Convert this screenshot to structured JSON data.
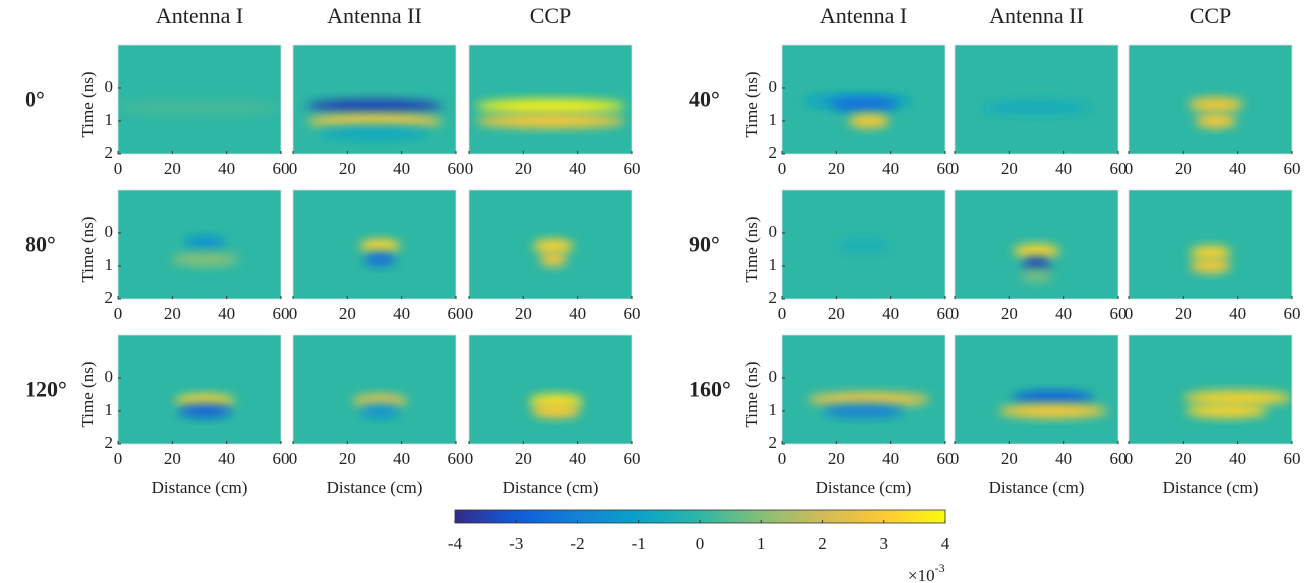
{
  "chart_data": [
    {
      "type": "heatmap",
      "title": "Antenna I",
      "angle_label": "0°",
      "ylabel": "Time (ns)",
      "xlim": [
        0,
        60
      ],
      "ylim": [
        2,
        -1.3
      ],
      "xticks": [
        0,
        20,
        40,
        60
      ],
      "yticks": [
        0,
        1,
        2
      ],
      "blobs": [
        {
          "x": 30,
          "y": 0.6,
          "w": 60,
          "value": 0.3
        }
      ]
    },
    {
      "type": "heatmap",
      "title": "Antenna II",
      "xlim": [
        0,
        60
      ],
      "ylim": [
        2,
        -1.3
      ],
      "xticks": [
        0,
        20,
        40,
        60
      ],
      "blobs": [
        {
          "x": 30,
          "y": 0.55,
          "w": 50,
          "value": -3.5
        },
        {
          "x": 30,
          "y": 1.0,
          "w": 50,
          "value": 2.8
        },
        {
          "x": 30,
          "y": 1.35,
          "w": 40,
          "value": -0.8
        }
      ]
    },
    {
      "type": "heatmap",
      "title": "CCP",
      "xlim": [
        0,
        60
      ],
      "ylim": [
        2,
        -1.3
      ],
      "xticks": [
        0,
        20,
        40,
        60
      ],
      "blobs": [
        {
          "x": 30,
          "y": 0.55,
          "w": 55,
          "value": 3.8
        },
        {
          "x": 30,
          "y": 1.0,
          "w": 55,
          "value": 3.0
        }
      ]
    },
    {
      "type": "heatmap",
      "title": "Antenna I",
      "angle_label": "40°",
      "ylabel": "Time (ns)",
      "xlim": [
        0,
        60
      ],
      "ylim": [
        2,
        -1.3
      ],
      "xticks": [
        0,
        20,
        40,
        60
      ],
      "yticks": [
        0,
        1,
        2
      ],
      "blobs": [
        {
          "x": 28,
          "y": 0.4,
          "w": 40,
          "value": -1.2
        },
        {
          "x": 30,
          "y": 0.5,
          "w": 25,
          "value": -2.5
        },
        {
          "x": 32,
          "y": 1.0,
          "w": 15,
          "value": 3
        }
      ]
    },
    {
      "type": "heatmap",
      "title": "Antenna II",
      "xlim": [
        0,
        60
      ],
      "ylim": [
        2,
        -1.3
      ],
      "xticks": [
        0,
        20,
        40,
        60
      ],
      "blobs": [
        {
          "x": 30,
          "y": 0.6,
          "w": 40,
          "value": -0.7
        }
      ]
    },
    {
      "type": "heatmap",
      "title": "CCP",
      "xlim": [
        0,
        60
      ],
      "ylim": [
        2,
        -1.3
      ],
      "xticks": [
        0,
        20,
        40,
        60
      ],
      "blobs": [
        {
          "x": 32,
          "y": 0.5,
          "w": 20,
          "value": 3
        },
        {
          "x": 32,
          "y": 1.0,
          "w": 15,
          "value": 3
        }
      ]
    },
    {
      "type": "heatmap",
      "angle_label": "80°",
      "ylabel": "Time (ns)",
      "xlim": [
        0,
        60
      ],
      "ylim": [
        2,
        -1.3
      ],
      "xticks": [
        0,
        20,
        40,
        60
      ],
      "yticks": [
        0,
        1,
        2
      ],
      "blobs": [
        {
          "x": 32,
          "y": 0.3,
          "w": 15,
          "value": -1.5
        },
        {
          "x": 32,
          "y": 0.8,
          "w": 25,
          "value": 1
        }
      ]
    },
    {
      "type": "heatmap",
      "xlim": [
        0,
        60
      ],
      "ylim": [
        2,
        -1.3
      ],
      "xticks": [
        0,
        20,
        40,
        60
      ],
      "blobs": [
        {
          "x": 32,
          "y": 0.4,
          "w": 15,
          "value": 3.2
        },
        {
          "x": 32,
          "y": 0.8,
          "w": 12,
          "value": -2.5
        }
      ]
    },
    {
      "type": "heatmap",
      "xlim": [
        0,
        60
      ],
      "ylim": [
        2,
        -1.3
      ],
      "xticks": [
        0,
        20,
        40,
        60
      ],
      "blobs": [
        {
          "x": 31,
          "y": 0.4,
          "w": 15,
          "value": 3.2
        },
        {
          "x": 31,
          "y": 0.8,
          "w": 10,
          "value": 2.8
        }
      ]
    },
    {
      "type": "heatmap",
      "angle_label": "90°",
      "ylabel": "Time (ns)",
      "xlim": [
        0,
        60
      ],
      "ylim": [
        2,
        -1.3
      ],
      "xticks": [
        0,
        20,
        40,
        60
      ],
      "yticks": [
        0,
        1,
        2
      ],
      "blobs": [
        {
          "x": 30,
          "y": 0.4,
          "w": 20,
          "value": -0.5
        }
      ]
    },
    {
      "type": "heatmap",
      "xlim": [
        0,
        60
      ],
      "ylim": [
        2,
        -1.3
      ],
      "xticks": [
        0,
        20,
        40,
        60
      ],
      "blobs": [
        {
          "x": 30,
          "y": 0.55,
          "w": 17,
          "value": 3.2
        },
        {
          "x": 30,
          "y": 0.95,
          "w": 10,
          "value": -3.5
        },
        {
          "x": 30,
          "y": 1.3,
          "w": 12,
          "value": 0.8
        }
      ]
    },
    {
      "type": "heatmap",
      "xlim": [
        0,
        60
      ],
      "ylim": [
        2,
        -1.3
      ],
      "xticks": [
        0,
        20,
        40,
        60
      ],
      "blobs": [
        {
          "x": 30,
          "y": 0.6,
          "w": 15,
          "value": 3.2
        },
        {
          "x": 30,
          "y": 1.0,
          "w": 15,
          "value": 3
        }
      ]
    },
    {
      "type": "heatmap",
      "angle_label": "120°",
      "ylabel": "Time (ns)",
      "xlabel": "Distance (cm)",
      "xlim": [
        0,
        60
      ],
      "ylim": [
        2,
        -1.3
      ],
      "xticks": [
        0,
        20,
        40,
        60
      ],
      "yticks": [
        0,
        1,
        2
      ],
      "blobs": [
        {
          "x": 32,
          "y": 0.7,
          "w": 22,
          "value": 3.2
        },
        {
          "x": 32,
          "y": 1.0,
          "w": 20,
          "value": -2.8
        }
      ]
    },
    {
      "type": "heatmap",
      "xlabel": "Distance (cm)",
      "xlim": [
        0,
        60
      ],
      "ylim": [
        2,
        -1.3
      ],
      "xticks": [
        0,
        20,
        40,
        60
      ],
      "blobs": [
        {
          "x": 32,
          "y": 0.7,
          "w": 20,
          "value": 2.5
        },
        {
          "x": 32,
          "y": 1.0,
          "w": 15,
          "value": -1.5
        }
      ]
    },
    {
      "type": "heatmap",
      "xlabel": "Distance (cm)",
      "xlim": [
        0,
        60
      ],
      "ylim": [
        2,
        -1.3
      ],
      "xticks": [
        0,
        20,
        40,
        60
      ],
      "blobs": [
        {
          "x": 32,
          "y": 0.7,
          "w": 20,
          "value": 3.5
        },
        {
          "x": 32,
          "y": 1.0,
          "w": 18,
          "value": 3
        }
      ]
    },
    {
      "type": "heatmap",
      "angle_label": "160°",
      "ylabel": "Time (ns)",
      "xlabel": "Distance (cm)",
      "xlim": [
        0,
        60
      ],
      "ylim": [
        2,
        -1.3
      ],
      "xticks": [
        0,
        20,
        40,
        60
      ],
      "yticks": [
        0,
        1,
        2
      ],
      "blobs": [
        {
          "x": 32,
          "y": 0.65,
          "w": 45,
          "value": 2.8
        },
        {
          "x": 30,
          "y": 1.0,
          "w": 30,
          "value": -2
        }
      ]
    },
    {
      "type": "heatmap",
      "xlabel": "Distance (cm)",
      "xlim": [
        0,
        60
      ],
      "ylim": [
        2,
        -1.3
      ],
      "xticks": [
        0,
        20,
        40,
        60
      ],
      "blobs": [
        {
          "x": 36,
          "y": 0.6,
          "w": 30,
          "value": -2.8
        },
        {
          "x": 36,
          "y": 1.0,
          "w": 40,
          "value": 3
        }
      ]
    },
    {
      "type": "heatmap",
      "xlabel": "Distance (cm)",
      "xlim": [
        0,
        60
      ],
      "ylim": [
        2,
        -1.3
      ],
      "xticks": [
        0,
        20,
        40,
        60
      ],
      "blobs": [
        {
          "x": 40,
          "y": 0.6,
          "w": 40,
          "value": 3.2
        },
        {
          "x": 36,
          "y": 1.0,
          "w": 30,
          "value": 3.2
        }
      ]
    }
  ],
  "colorbar": {
    "lim": [
      -4,
      4
    ],
    "ticks": [
      -4,
      -3,
      -2,
      -1,
      0,
      1,
      2,
      3,
      4
    ],
    "scale_base": "×10",
    "scale_exponent": "-3"
  }
}
